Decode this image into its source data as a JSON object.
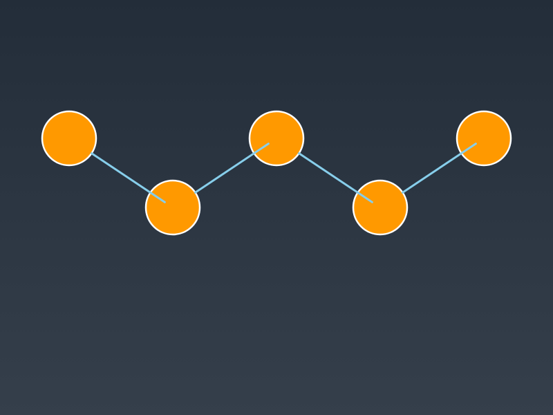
{
  "colors": {
    "background_top": "#232d39",
    "background_bottom": "#353f4b",
    "node_fill": "#ff9900",
    "node_stroke": "#ffffff",
    "edge": "#87ceeb"
  },
  "nodes": [
    {
      "id": "node-1"
    },
    {
      "id": "node-2"
    },
    {
      "id": "node-3"
    },
    {
      "id": "node-4"
    },
    {
      "id": "node-5"
    }
  ],
  "edges": [
    {
      "from": "node-1",
      "to": "node-2"
    },
    {
      "from": "node-2",
      "to": "node-3"
    },
    {
      "from": "node-3",
      "to": "node-4"
    },
    {
      "from": "node-4",
      "to": "node-5"
    }
  ]
}
